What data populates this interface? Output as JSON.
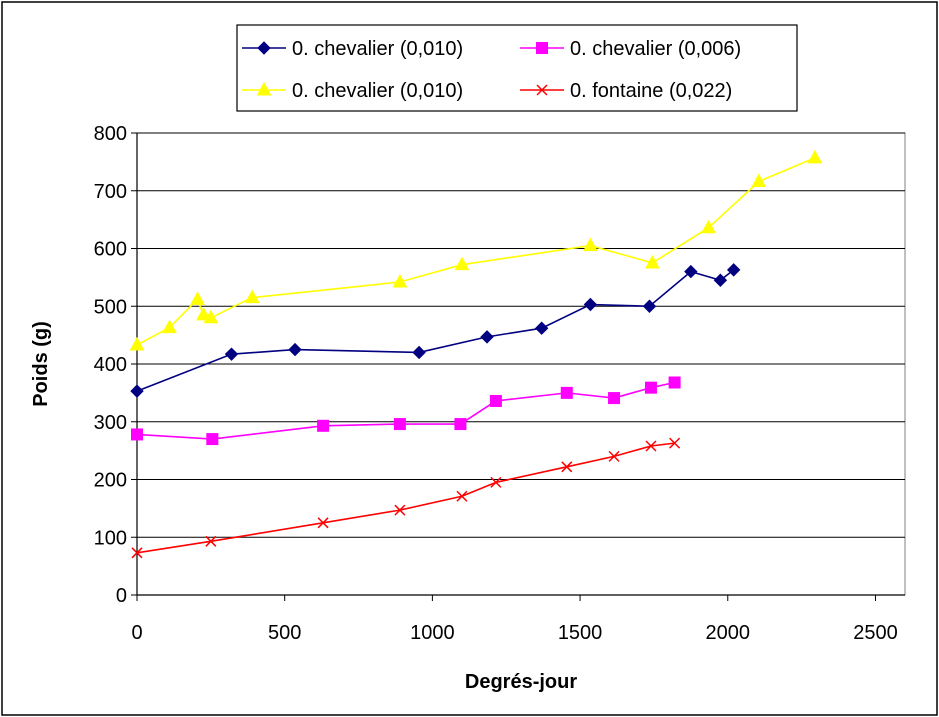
{
  "chart_data": {
    "type": "line",
    "title": "",
    "xlabel": "Degrés-jour",
    "ylabel": "Poids (g)",
    "xlim": [
      0,
      2600
    ],
    "ylim": [
      0,
      800
    ],
    "x_ticks": [
      "0",
      "500",
      "1000",
      "1500",
      "2000",
      "2500"
    ],
    "y_ticks": [
      "0",
      "100",
      "200",
      "300",
      "400",
      "500",
      "600",
      "700",
      "800"
    ],
    "grid": "horizontal",
    "legend_position": "top",
    "series": [
      {
        "name": "0. chevalier (0,010)",
        "color": "#000080",
        "marker": "diamond",
        "x": [
          0,
          320,
          535,
          955,
          1185,
          1370,
          1535,
          1735,
          1875,
          1975,
          2020
        ],
        "y": [
          353,
          417,
          425,
          420,
          447,
          462,
          503,
          500,
          560,
          545,
          563
        ]
      },
      {
        "name": "0. chevalier (0,006)",
        "color": "#FF00FF",
        "marker": "square",
        "x": [
          0,
          255,
          630,
          890,
          1095,
          1215,
          1455,
          1615,
          1740,
          1820
        ],
        "y": [
          278,
          270,
          293,
          296,
          296,
          336,
          350,
          341,
          359,
          368
        ]
      },
      {
        "name": "0. chevalier (0,010)",
        "color": "#FFFF00",
        "marker": "triangle",
        "x": [
          0,
          110,
          205,
          225,
          250,
          390,
          890,
          1100,
          1535,
          1745,
          1935,
          2105,
          2295
        ],
        "y": [
          433,
          463,
          512,
          485,
          480,
          515,
          542,
          572,
          605,
          575,
          636,
          716,
          757
        ]
      },
      {
        "name": "0. fontaine (0,022)",
        "color": "#FF0000",
        "marker": "x",
        "x": [
          0,
          250,
          630,
          890,
          1100,
          1215,
          1455,
          1615,
          1740,
          1820
        ],
        "y": [
          73,
          93,
          125,
          147,
          171,
          195,
          222,
          240,
          258,
          263
        ]
      }
    ]
  }
}
